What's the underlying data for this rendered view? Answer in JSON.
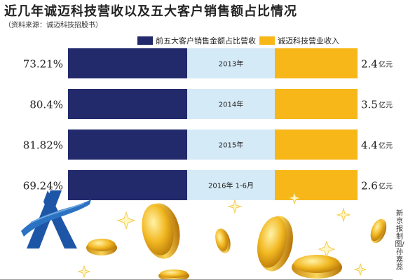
{
  "title": "近几年诚迈科技营收以及五大客户销售额占比情况",
  "source": "（资料来源：诚迈科技招股书）",
  "credit": "新京报制图/孙嘉蕊",
  "legend": [
    {
      "label": "前五大客户销售金额占比营收",
      "color": "#232a6b"
    },
    {
      "label": "诚迈科技营业收入",
      "color": "#f7b719"
    }
  ],
  "colors": {
    "share_bar": "#232a6b",
    "year_band": "#d5eaf7",
    "revenue_bar": "#f7b719"
  },
  "chart_data": {
    "type": "bar",
    "categories": [
      "2013年",
      "2014年",
      "2015年",
      "2016年 1-6月"
    ],
    "series": [
      {
        "name": "前五大客户销售金额占比营收",
        "values": [
          73.21,
          80.4,
          81.82,
          69.24
        ],
        "labels": [
          "73.21%",
          "80.4%",
          "81.82%",
          "69.24%"
        ]
      },
      {
        "name": "诚迈科技营业收入",
        "values": [
          2.4,
          3.5,
          4.4,
          2.6
        ],
        "labels": [
          "2.4",
          "3.5",
          "4.4",
          "2.6"
        ],
        "unit": "亿元"
      }
    ]
  }
}
